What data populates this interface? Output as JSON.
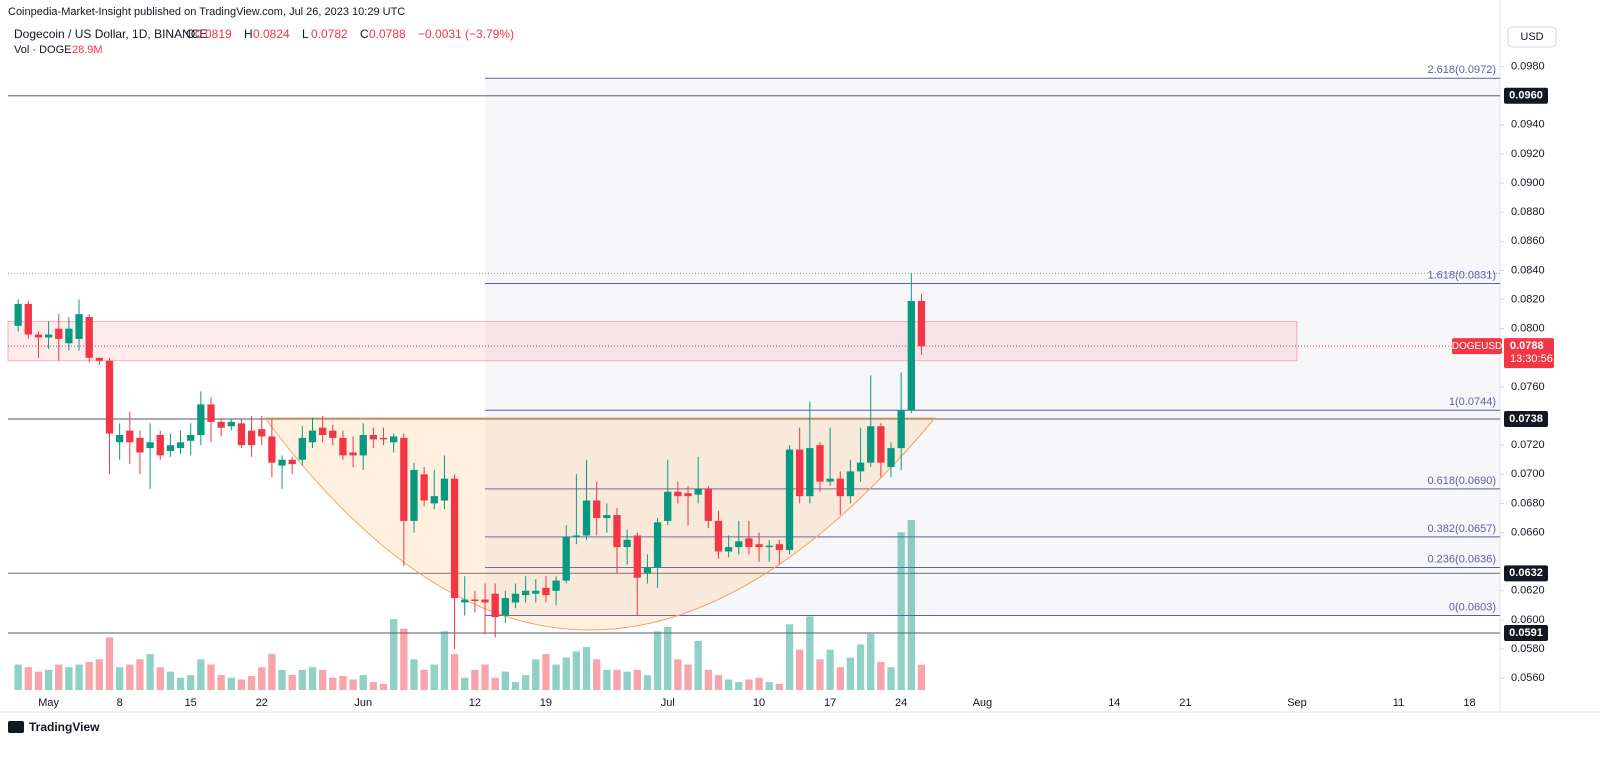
{
  "header": {
    "publisher": "Coinpedia-Market-Insight published on TradingView.com, Jul 26, 2023 10:29 UTC",
    "symbol": "Dogecoin / US Dollar, 1D, BINANCE",
    "ohlc": [
      {
        "key": "O",
        "value": "0.0819"
      },
      {
        "key": "H",
        "value": "0.0824"
      },
      {
        "key": "L",
        "value": "0.0782"
      },
      {
        "key": "C",
        "value": "0.0788"
      }
    ],
    "change": "−0.0031 (−3.79%)",
    "vol_label": "Vol · DOGE",
    "vol_value": "28.9M",
    "currency": "USD",
    "logo": "TradingView"
  },
  "chart_data": {
    "type": "candlestick",
    "up_color": "#089981",
    "down_color": "#f23645",
    "x": [
      "2023-04-28",
      "2023-04-29",
      "2023-04-30",
      "2023-05-01",
      "2023-05-02",
      "2023-05-03",
      "2023-05-04",
      "2023-05-05",
      "2023-05-06",
      "2023-05-07",
      "2023-05-08",
      "2023-05-09",
      "2023-05-10",
      "2023-05-11",
      "2023-05-12",
      "2023-05-13",
      "2023-05-14",
      "2023-05-15",
      "2023-05-16",
      "2023-05-17",
      "2023-05-18",
      "2023-05-19",
      "2023-05-20",
      "2023-05-21",
      "2023-05-22",
      "2023-05-23",
      "2023-05-24",
      "2023-05-25",
      "2023-05-26",
      "2023-05-27",
      "2023-05-28",
      "2023-05-29",
      "2023-05-30",
      "2023-05-31",
      "2023-06-01",
      "2023-06-02",
      "2023-06-03",
      "2023-06-04",
      "2023-06-05",
      "2023-06-06",
      "2023-06-07",
      "2023-06-08",
      "2023-06-09",
      "2023-06-10",
      "2023-06-11",
      "2023-06-12",
      "2023-06-13",
      "2023-06-14",
      "2023-06-15",
      "2023-06-16",
      "2023-06-17",
      "2023-06-18",
      "2023-06-19",
      "2023-06-20",
      "2023-06-21",
      "2023-06-22",
      "2023-06-23",
      "2023-06-24",
      "2023-06-25",
      "2023-06-26",
      "2023-06-27",
      "2023-06-28",
      "2023-06-29",
      "2023-06-30",
      "2023-07-01",
      "2023-07-02",
      "2023-07-03",
      "2023-07-04",
      "2023-07-05",
      "2023-07-06",
      "2023-07-07",
      "2023-07-08",
      "2023-07-09",
      "2023-07-10",
      "2023-07-11",
      "2023-07-12",
      "2023-07-13",
      "2023-07-14",
      "2023-07-15",
      "2023-07-16",
      "2023-07-17",
      "2023-07-18",
      "2023-07-19",
      "2023-07-20",
      "2023-07-21",
      "2023-07-22",
      "2023-07-23",
      "2023-07-24",
      "2023-07-25",
      "2023-07-26"
    ],
    "open": [
      0.0802,
      0.0817,
      0.0796,
      0.0794,
      0.08,
      0.079,
      0.0793,
      0.0808,
      0.078,
      0.0778,
      0.0722,
      0.073,
      0.0725,
      0.0718,
      0.0727,
      0.0716,
      0.0718,
      0.0723,
      0.0727,
      0.0748,
      0.0736,
      0.0733,
      0.0735,
      0.073,
      0.0731,
      0.0726,
      0.0706,
      0.071,
      0.071,
      0.0722,
      0.0732,
      0.073,
      0.0725,
      0.0715,
      0.0713,
      0.0727,
      0.0725,
      0.0722,
      0.0725,
      0.0668,
      0.07,
      0.068,
      0.0682,
      0.0697,
      0.0612,
      0.0614,
      0.0614,
      0.0618,
      0.0603,
      0.0612,
      0.0617,
      0.0618,
      0.0622,
      0.062,
      0.0627,
      0.0657,
      0.0658,
      0.0682,
      0.067,
      0.0672,
      0.065,
      0.0658,
      0.0632,
      0.0636,
      0.0668,
      0.0688,
      0.0687,
      0.0686,
      0.069,
      0.0668,
      0.0647,
      0.065,
      0.0656,
      0.0652,
      0.065,
      0.0652,
      0.0648,
      0.0717,
      0.0685,
      0.072,
      0.0695,
      0.0697,
      0.0685,
      0.0702,
      0.0708,
      0.0733,
      0.0705,
      0.0718,
      0.0744,
      0.0819
    ],
    "high": [
      0.082,
      0.0819,
      0.0798,
      0.0805,
      0.081,
      0.0808,
      0.082,
      0.081,
      0.078,
      0.078,
      0.0735,
      0.0743,
      0.073,
      0.0735,
      0.073,
      0.0728,
      0.073,
      0.0735,
      0.0757,
      0.0753,
      0.0738,
      0.0738,
      0.0738,
      0.074,
      0.074,
      0.0738,
      0.0713,
      0.0712,
      0.0733,
      0.0739,
      0.074,
      0.0734,
      0.073,
      0.0726,
      0.0735,
      0.0732,
      0.0732,
      0.0728,
      0.0728,
      0.0708,
      0.0705,
      0.0703,
      0.0713,
      0.07,
      0.063,
      0.062,
      0.0625,
      0.0625,
      0.062,
      0.0625,
      0.063,
      0.0628,
      0.063,
      0.063,
      0.0665,
      0.07,
      0.071,
      0.0695,
      0.068,
      0.0677,
      0.0662,
      0.066,
      0.0645,
      0.067,
      0.071,
      0.0695,
      0.0692,
      0.0712,
      0.0692,
      0.0675,
      0.0658,
      0.0668,
      0.0668,
      0.066,
      0.0655,
      0.0655,
      0.072,
      0.0732,
      0.075,
      0.0722,
      0.0732,
      0.0702,
      0.071,
      0.0732,
      0.0768,
      0.0735,
      0.0722,
      0.077,
      0.0838,
      0.0824
    ],
    "low": [
      0.0798,
      0.0793,
      0.078,
      0.0786,
      0.0778,
      0.0785,
      0.0785,
      0.0777,
      0.0775,
      0.07,
      0.071,
      0.0707,
      0.07,
      0.069,
      0.071,
      0.0712,
      0.0714,
      0.0713,
      0.072,
      0.0722,
      0.0726,
      0.073,
      0.0718,
      0.0712,
      0.072,
      0.0698,
      0.069,
      0.07,
      0.0706,
      0.0718,
      0.0722,
      0.072,
      0.071,
      0.0705,
      0.0703,
      0.0718,
      0.072,
      0.0715,
      0.0637,
      0.066,
      0.0678,
      0.0676,
      0.0676,
      0.058,
      0.0603,
      0.0605,
      0.059,
      0.0588,
      0.0598,
      0.0608,
      0.0612,
      0.0612,
      0.0612,
      0.061,
      0.0625,
      0.0652,
      0.0655,
      0.0658,
      0.066,
      0.0632,
      0.0638,
      0.0603,
      0.0625,
      0.0622,
      0.0665,
      0.068,
      0.0665,
      0.068,
      0.0663,
      0.0642,
      0.0643,
      0.0645,
      0.0645,
      0.064,
      0.064,
      0.0638,
      0.0645,
      0.068,
      0.068,
      0.0688,
      0.0692,
      0.0672,
      0.068,
      0.0695,
      0.0705,
      0.0698,
      0.0698,
      0.0703,
      0.0742,
      0.0782
    ],
    "close": [
      0.0817,
      0.0796,
      0.0794,
      0.0796,
      0.0793,
      0.08,
      0.081,
      0.078,
      0.0778,
      0.0728,
      0.0727,
      0.0722,
      0.0715,
      0.0722,
      0.0713,
      0.072,
      0.0722,
      0.0727,
      0.0748,
      0.0736,
      0.0732,
      0.0736,
      0.072,
      0.072,
      0.0726,
      0.0708,
      0.071,
      0.0707,
      0.0725,
      0.073,
      0.0727,
      0.0725,
      0.0713,
      0.0713,
      0.0727,
      0.0724,
      0.0724,
      0.0726,
      0.0668,
      0.0703,
      0.0682,
      0.0685,
      0.0697,
      0.0615,
      0.0614,
      0.0613,
      0.0612,
      0.0602,
      0.0615,
      0.0618,
      0.062,
      0.062,
      0.0617,
      0.0627,
      0.0657,
      0.0658,
      0.0682,
      0.067,
      0.0672,
      0.065,
      0.0655,
      0.0629,
      0.0636,
      0.0667,
      0.0688,
      0.0685,
      0.0685,
      0.069,
      0.0668,
      0.0647,
      0.065,
      0.0654,
      0.065,
      0.065,
      0.0651,
      0.0648,
      0.0717,
      0.0685,
      0.0718,
      0.0695,
      0.0697,
      0.0685,
      0.0702,
      0.0708,
      0.0733,
      0.0708,
      0.0718,
      0.0744,
      0.0819,
      0.0788
    ],
    "volume": [
      29,
      26,
      21,
      23,
      29,
      26,
      29,
      32,
      35,
      60,
      26,
      29,
      35,
      41,
      26,
      21,
      14,
      17,
      35,
      29,
      17,
      14,
      12,
      16,
      26,
      41,
      23,
      17,
      23,
      26,
      23,
      14,
      16,
      12,
      17,
      9,
      7,
      81,
      70,
      35,
      23,
      29,
      67,
      41,
      14,
      23,
      29,
      14,
      21,
      9,
      17,
      35,
      41,
      29,
      37,
      44,
      49,
      35,
      23,
      23,
      21,
      23,
      17,
      67,
      72,
      35,
      29,
      56,
      23,
      17,
      12,
      9,
      12,
      14,
      9,
      7,
      75,
      46,
      84,
      35,
      46,
      26,
      37,
      52,
      64,
      32,
      26,
      180,
      194,
      28.9
    ],
    "xlim": [
      "2023-04-27",
      "2023-09-21"
    ],
    "xticks": [
      {
        "value": "2023-05-01",
        "label": "May"
      },
      {
        "value": "2023-05-08",
        "label": "8"
      },
      {
        "value": "2023-05-15",
        "label": "15"
      },
      {
        "value": "2023-05-22",
        "label": "22"
      },
      {
        "value": "2023-06-01",
        "label": "Jun"
      },
      {
        "value": "2023-06-12",
        "label": "12"
      },
      {
        "value": "2023-06-19",
        "label": "19"
      },
      {
        "value": "2023-07-01",
        "label": "Jul"
      },
      {
        "value": "2023-07-10",
        "label": "10"
      },
      {
        "value": "2023-07-17",
        "label": "17"
      },
      {
        "value": "2023-07-24",
        "label": "24"
      },
      {
        "value": "2023-08-01",
        "label": "Aug"
      },
      {
        "value": "2023-08-14",
        "label": "14"
      },
      {
        "value": "2023-08-21",
        "label": "21"
      },
      {
        "value": "2023-09-01",
        "label": "Sep"
      },
      {
        "value": "2023-09-11",
        "label": "11"
      },
      {
        "value": "2023-09-18",
        "label": "18"
      }
    ],
    "ylim": [
      0.0545,
      0.1012
    ],
    "yticks": [
      {
        "value": 0.098,
        "label": "0.0980"
      },
      {
        "value": 0.094,
        "label": "0.0940"
      },
      {
        "value": 0.092,
        "label": "0.0920"
      },
      {
        "value": 0.09,
        "label": "0.0900"
      },
      {
        "value": 0.088,
        "label": "0.0880"
      },
      {
        "value": 0.086,
        "label": "0.0860"
      },
      {
        "value": 0.084,
        "label": "0.0840"
      },
      {
        "value": 0.082,
        "label": "0.0820"
      },
      {
        "value": 0.08,
        "label": "0.0800"
      },
      {
        "value": 0.076,
        "label": "0.0760"
      },
      {
        "value": 0.072,
        "label": "0.0720"
      },
      {
        "value": 0.07,
        "label": "0.0700"
      },
      {
        "value": 0.068,
        "label": "0.0680"
      },
      {
        "value": 0.066,
        "label": "0.0660"
      },
      {
        "value": 0.062,
        "label": "0.0620"
      },
      {
        "value": 0.06,
        "label": "0.0600"
      },
      {
        "value": 0.058,
        "label": "0.0580"
      },
      {
        "value": 0.056,
        "label": "0.0560"
      }
    ],
    "levels": [
      {
        "value": 0.096,
        "label": "0.0960"
      },
      {
        "value": 0.0738,
        "label": "0.0738"
      },
      {
        "value": 0.0632,
        "label": "0.0632"
      },
      {
        "value": 0.0591,
        "label": "0.0591"
      }
    ],
    "fib": {
      "start": "2023-06-13",
      "color": "#5d5fa5",
      "levels": [
        {
          "value": 0.0972,
          "label": "2.618(0.0972)"
        },
        {
          "value": 0.0831,
          "label": "1.618(0.0831)"
        },
        {
          "value": 0.0744,
          "label": "1(0.0744)"
        },
        {
          "value": 0.069,
          "label": "0.618(0.0690)"
        },
        {
          "value": 0.0657,
          "label": "0.382(0.0657)"
        },
        {
          "value": 0.0636,
          "label": "0.236(0.0636)"
        },
        {
          "value": 0.0603,
          "label": "0(0.0603)"
        }
      ]
    },
    "zone": {
      "from": 0.0778,
      "to": 0.0805,
      "end": "2023-09-01"
    },
    "price_label": {
      "name": "DOGEUSD",
      "value": "0.0788",
      "countdown": "13:30:56"
    }
  }
}
